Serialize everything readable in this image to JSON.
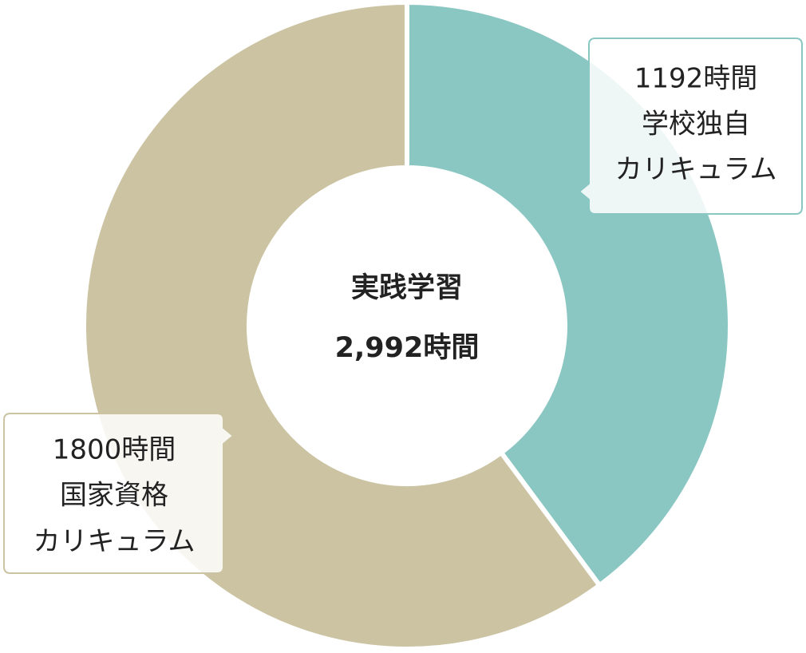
{
  "chart_data": {
    "type": "donut",
    "categories": [
      [
        "学校独自",
        "カリキュラム"
      ],
      [
        "国家資格",
        "カリキュラム"
      ]
    ],
    "values": [
      1192,
      1800
    ],
    "value_labels": [
      "1192時間",
      "1800時間"
    ],
    "colors": [
      "#8ac7c3",
      "#cbc3a2"
    ],
    "center_title": "実践学習",
    "center_label": "2,992時間"
  }
}
